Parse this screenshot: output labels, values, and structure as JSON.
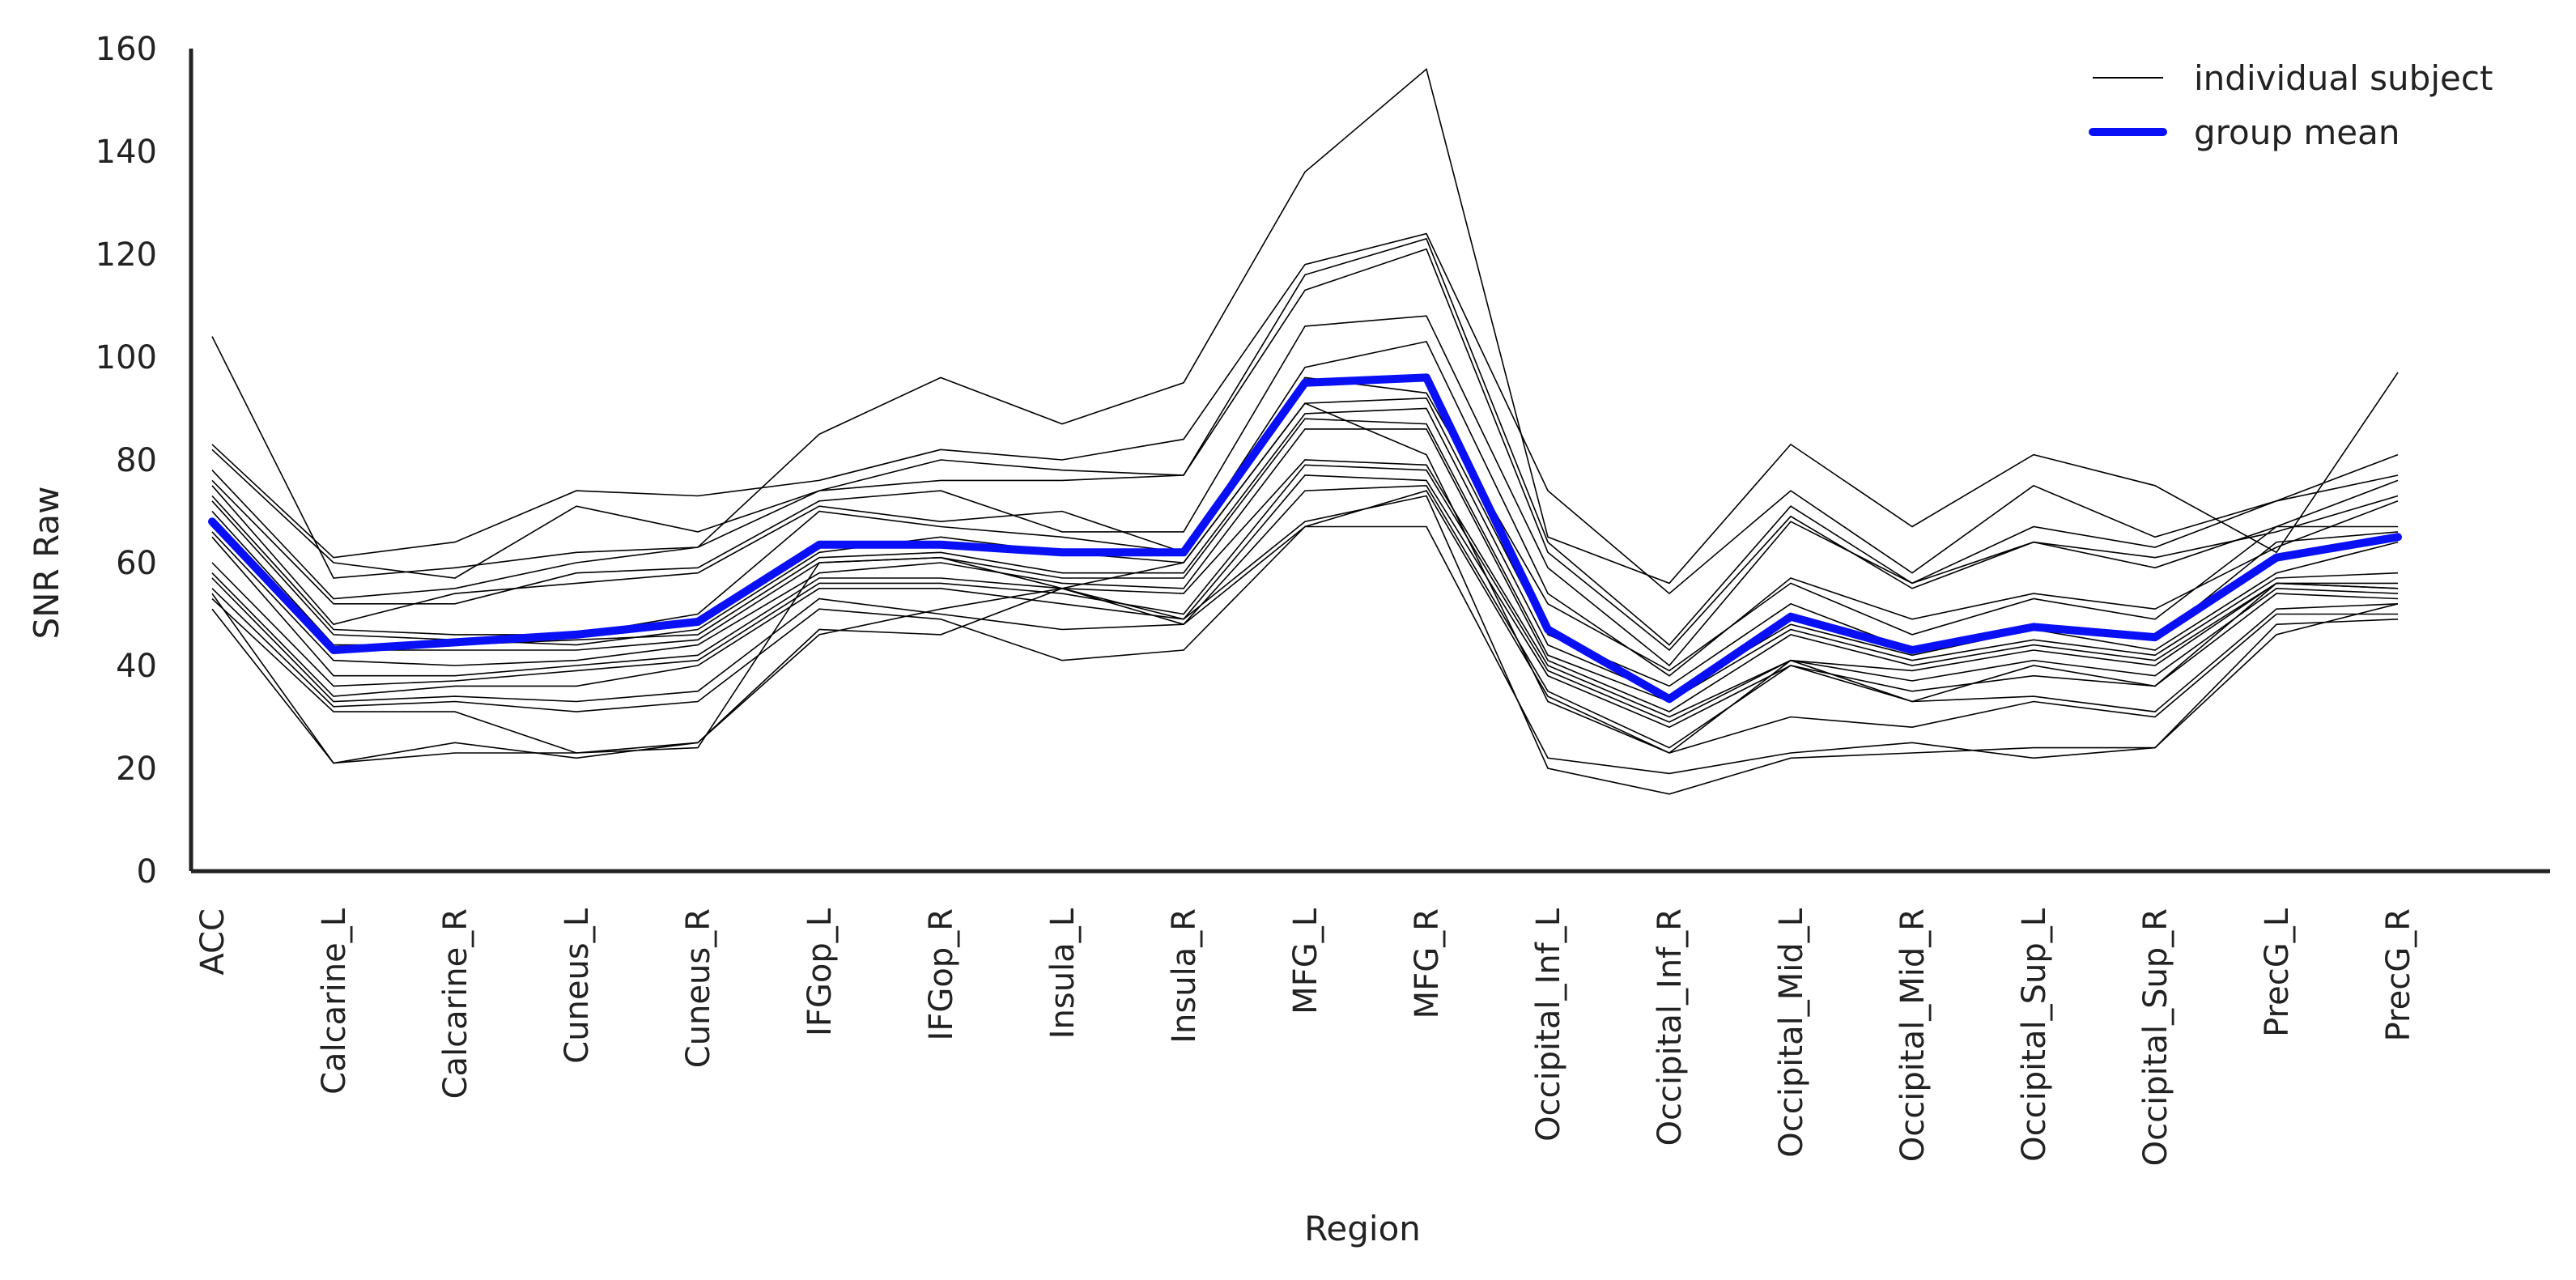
{
  "chart_data": {
    "type": "line",
    "xlabel": "Region",
    "ylabel": "SNR Raw",
    "ylim": [
      0,
      160
    ],
    "yticks": [
      0,
      20,
      40,
      60,
      80,
      100,
      120,
      140,
      160
    ],
    "grid": false,
    "legend_position": "top-right",
    "categories": [
      "ACC",
      "Calcarine_L",
      "Calcarine_R",
      "Cuneus_L",
      "Cuneus_R",
      "IFGop_L",
      "IFGop_R",
      "Insula_L",
      "Insula_R",
      "MFG_L",
      "MFG_R",
      "Occipital_Inf_L",
      "Occipital_Inf_R",
      "Occipital_Mid_L",
      "Occipital_Mid_R",
      "Occipital_Sup_L",
      "Occipital_Sup_R",
      "PrecG_L",
      "PrecG_R"
    ],
    "legend": [
      {
        "label": "individual subject",
        "color": "#000000",
        "style": "thin"
      },
      {
        "label": "group mean",
        "color": "#0a10f5",
        "style": "thick"
      }
    ],
    "individual_color": "#000000",
    "mean_color": "#0a10f5",
    "individual_series": [
      [
        104,
        57,
        59,
        62,
        63,
        85,
        96,
        87,
        95,
        136,
        156,
        65,
        56,
        83,
        67,
        81,
        75,
        62,
        97
      ],
      [
        83,
        61,
        64,
        74,
        73,
        76,
        82,
        80,
        84,
        118,
        124,
        74,
        54,
        74,
        58,
        75,
        65,
        72,
        81
      ],
      [
        82,
        60,
        57,
        71,
        66,
        74,
        80,
        78,
        77,
        116,
        123,
        64,
        44,
        71,
        56,
        67,
        63,
        72,
        77
      ],
      [
        78,
        53,
        55,
        60,
        63,
        74,
        76,
        76,
        77,
        113,
        121,
        62,
        43,
        69,
        55,
        64,
        59,
        67,
        76
      ],
      [
        76,
        52,
        52,
        58,
        59,
        72,
        74,
        66,
        66,
        106,
        108,
        59,
        40,
        68,
        56,
        64,
        61,
        66,
        73
      ],
      [
        75,
        48,
        54,
        56,
        58,
        71,
        68,
        70,
        62,
        98,
        103,
        54,
        38,
        57,
        49,
        54,
        51,
        63,
        72
      ],
      [
        73,
        47,
        46,
        46,
        50,
        70,
        67,
        65,
        62,
        96,
        93,
        52,
        39,
        56,
        46,
        53,
        49,
        67,
        67
      ],
      [
        72,
        46,
        45,
        44,
        47,
        62,
        65,
        62,
        60,
        91,
        92,
        46,
        36,
        52,
        43,
        48,
        45,
        64,
        66
      ],
      [
        70,
        44,
        44,
        45,
        46,
        61,
        62,
        58,
        58,
        89,
        90,
        44,
        34,
        48,
        42,
        47,
        43,
        58,
        64
      ],
      [
        68,
        43,
        43,
        43,
        45,
        60,
        61,
        57,
        57,
        88,
        87,
        42,
        33,
        47,
        41,
        45,
        42,
        57,
        58
      ],
      [
        66,
        41,
        40,
        41,
        44,
        58,
        60,
        56,
        55,
        86,
        86,
        41,
        31,
        46,
        40,
        44,
        41,
        56,
        56
      ],
      [
        65,
        38,
        38,
        40,
        42,
        57,
        57,
        55,
        54,
        80,
        79,
        40,
        30,
        41,
        39,
        43,
        40,
        56,
        55
      ],
      [
        60,
        36,
        37,
        39,
        41,
        56,
        56,
        54,
        50,
        79,
        78,
        39,
        29,
        41,
        37,
        41,
        38,
        55,
        54
      ],
      [
        58,
        34,
        36,
        36,
        40,
        55,
        55,
        52,
        49,
        77,
        76,
        38,
        28,
        40,
        35,
        38,
        36,
        54,
        53
      ],
      [
        57,
        33,
        34,
        33,
        35,
        53,
        50,
        47,
        48,
        74,
        75,
        35,
        24,
        40,
        33,
        34,
        31,
        51,
        52
      ],
      [
        55,
        32,
        33,
        31,
        33,
        51,
        49,
        41,
        43,
        67,
        74,
        34,
        23,
        30,
        28,
        33,
        30,
        50,
        50
      ],
      [
        53,
        31,
        31,
        23,
        25,
        47,
        46,
        55,
        48,
        67,
        67,
        22,
        19,
        23,
        25,
        22,
        24,
        48,
        49
      ],
      [
        51,
        21,
        25,
        22,
        25,
        46,
        51,
        55,
        49,
        68,
        73,
        20,
        15,
        22,
        23,
        24,
        24,
        46,
        52
      ],
      [
        54,
        21,
        23,
        23,
        24,
        60,
        61,
        55,
        60,
        91,
        81,
        33,
        23,
        41,
        33,
        40,
        36,
        56,
        55
      ]
    ],
    "group_mean": [
      68,
      43,
      44.5,
      46,
      48.5,
      63.5,
      63.5,
      62,
      62,
      95,
      96,
      47,
      33.5,
      49.5,
      43,
      47.5,
      45.5,
      61,
      65
    ]
  }
}
